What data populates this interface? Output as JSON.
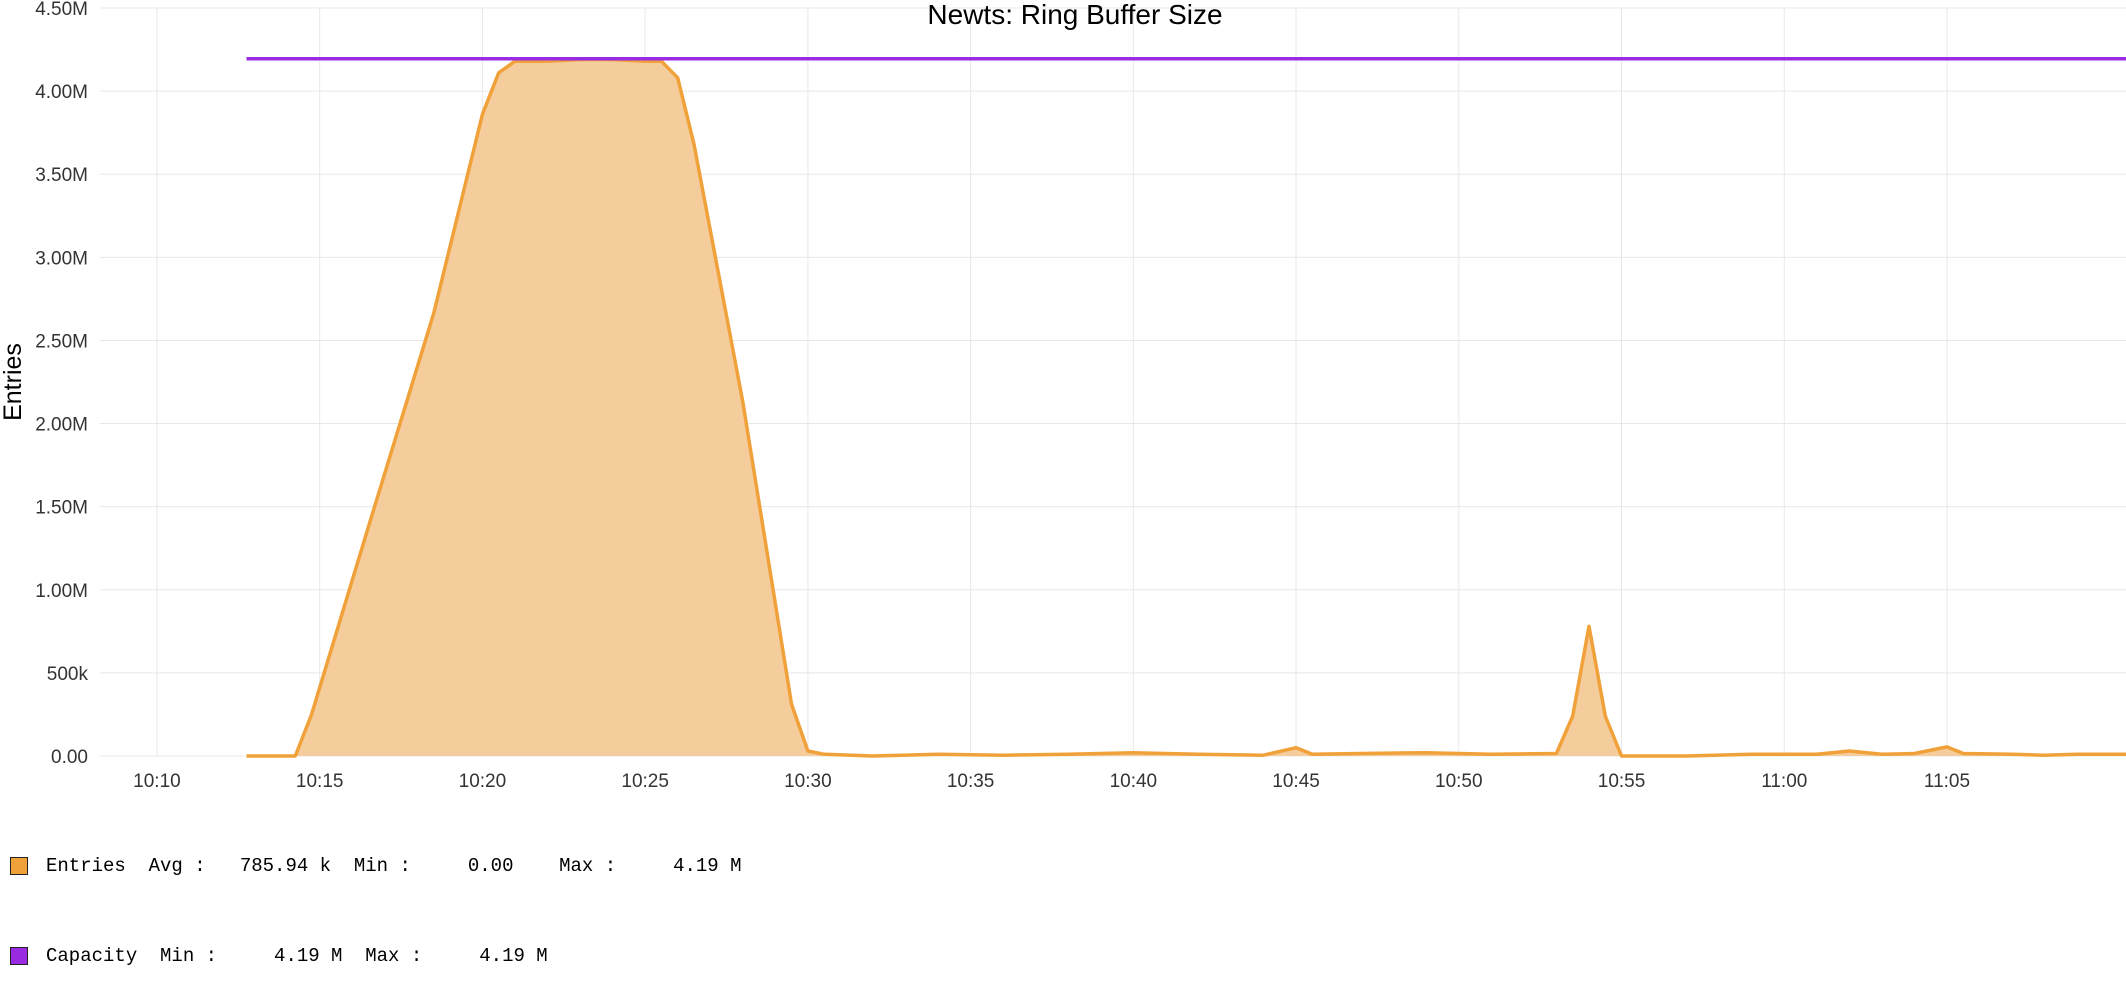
{
  "chart_data": {
    "type": "area",
    "title": "Newts: Ring Buffer Size",
    "ylabel": "Entries",
    "xlabel": "",
    "ylim": [
      0,
      4500000
    ],
    "xlim": [
      "10:08:15",
      "11:10:30"
    ],
    "grid": true,
    "y_ticks": [
      {
        "value": 0,
        "label": "0.00"
      },
      {
        "value": 500000,
        "label": "500k"
      },
      {
        "value": 1000000,
        "label": "1.00M"
      },
      {
        "value": 1500000,
        "label": "1.50M"
      },
      {
        "value": 2000000,
        "label": "2.00M"
      },
      {
        "value": 2500000,
        "label": "2.50M"
      },
      {
        "value": 3000000,
        "label": "3.00M"
      },
      {
        "value": 3500000,
        "label": "3.50M"
      },
      {
        "value": 4000000,
        "label": "4.00M"
      },
      {
        "value": 4500000,
        "label": "4.50M"
      }
    ],
    "x_ticks": [
      "10:10",
      "10:15",
      "10:20",
      "10:25",
      "10:30",
      "10:35",
      "10:40",
      "10:45",
      "10:50",
      "10:55",
      "11:00",
      "11:05"
    ],
    "series": [
      {
        "name": "Entries",
        "kind": "area",
        "color": "#f0a13a",
        "fill": "#f5cd9c",
        "points": [
          [
            "10:12:45",
            0
          ],
          [
            "10:14:15",
            0
          ],
          [
            "10:14:45",
            250000
          ],
          [
            "10:16:30",
            1380000
          ],
          [
            "10:18:30",
            2660000
          ],
          [
            "10:20:00",
            3860000
          ],
          [
            "10:20:30",
            4110000
          ],
          [
            "10:21:00",
            4180000
          ],
          [
            "10:22:00",
            4180000
          ],
          [
            "10:23:00",
            4190000
          ],
          [
            "10:24:00",
            4190000
          ],
          [
            "10:25:00",
            4180000
          ],
          [
            "10:25:30",
            4180000
          ],
          [
            "10:26:00",
            4080000
          ],
          [
            "10:26:30",
            3680000
          ],
          [
            "10:28:00",
            2130000
          ],
          [
            "10:29:30",
            310000
          ],
          [
            "10:30:00",
            30000
          ],
          [
            "10:30:30",
            10000
          ],
          [
            "10:32:00",
            0
          ],
          [
            "10:34:00",
            10000
          ],
          [
            "10:36:00",
            5000
          ],
          [
            "10:38:00",
            10000
          ],
          [
            "10:40:00",
            20000
          ],
          [
            "10:42:00",
            10000
          ],
          [
            "10:44:00",
            5000
          ],
          [
            "10:45:00",
            50000
          ],
          [
            "10:45:30",
            10000
          ],
          [
            "10:47:00",
            15000
          ],
          [
            "10:49:00",
            20000
          ],
          [
            "10:51:00",
            10000
          ],
          [
            "10:53:00",
            15000
          ],
          [
            "10:53:30",
            240000
          ],
          [
            "10:54:00",
            780000
          ],
          [
            "10:54:30",
            240000
          ],
          [
            "10:55:00",
            0
          ],
          [
            "10:57:00",
            0
          ],
          [
            "10:59:00",
            10000
          ],
          [
            "11:01:00",
            10000
          ],
          [
            "11:02:00",
            30000
          ],
          [
            "11:03:00",
            10000
          ],
          [
            "11:04:00",
            15000
          ],
          [
            "11:05:00",
            55000
          ],
          [
            "11:05:30",
            15000
          ],
          [
            "11:07:00",
            10000
          ],
          [
            "11:08:00",
            5000
          ],
          [
            "11:09:00",
            10000
          ],
          [
            "11:10:30",
            10000
          ]
        ]
      },
      {
        "name": "Capacity",
        "kind": "line",
        "color": "#9a2be2",
        "points": [
          [
            "10:12:45",
            4194304
          ],
          [
            "11:10:30",
            4194304
          ]
        ]
      }
    ],
    "legend": [
      {
        "color": "#f0a13a",
        "text": "Entries  Avg :   785.94 k  Min :     0.00    Max :     4.19 M"
      },
      {
        "color": "#9a2be2",
        "text": "Capacity  Min :     4.19 M  Max :     4.19 M"
      }
    ]
  }
}
